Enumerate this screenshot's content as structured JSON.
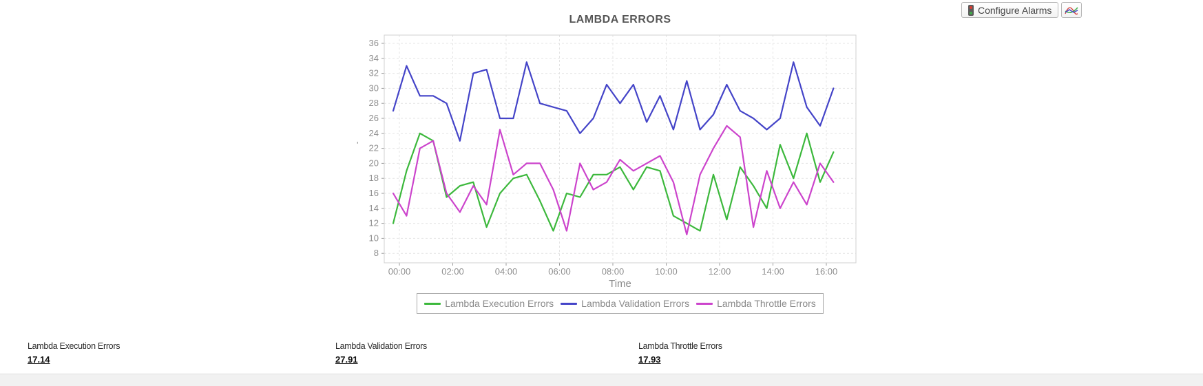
{
  "header": {
    "configure_alarms_label": "Configure Alarms"
  },
  "chart_data": {
    "type": "line",
    "title": "LAMBDA ERRORS",
    "xlabel": "Time",
    "ylabel_mark": "'",
    "grid": true,
    "legend_position": "bottom",
    "ylim": [
      8,
      36
    ],
    "y_ticks": [
      8,
      10,
      12,
      14,
      16,
      18,
      20,
      22,
      24,
      26,
      28,
      30,
      32,
      34,
      36
    ],
    "x_ticks": [
      "00:00",
      "02:00",
      "04:00",
      "06:00",
      "08:00",
      "10:00",
      "12:00",
      "14:00",
      "16:00"
    ],
    "x": [
      "00:00",
      "00:30",
      "01:00",
      "01:30",
      "02:00",
      "02:30",
      "03:00",
      "03:30",
      "04:00",
      "04:30",
      "05:00",
      "05:30",
      "06:00",
      "06:30",
      "07:00",
      "07:30",
      "08:00",
      "08:30",
      "09:00",
      "09:30",
      "10:00",
      "10:30",
      "11:00",
      "11:30",
      "12:00",
      "12:30",
      "13:00",
      "13:30",
      "14:00",
      "14:30",
      "15:00",
      "15:30",
      "16:00",
      "16:30"
    ],
    "series": [
      {
        "name": "Lambda Execution Errors",
        "color": "#3cb83c",
        "values": [
          12,
          19,
          24,
          23,
          15.5,
          17,
          17.5,
          11.5,
          16,
          18,
          18.5,
          15,
          11,
          16,
          15.5,
          18.5,
          18.5,
          19.5,
          16.5,
          19.5,
          19,
          13,
          12,
          11,
          18.5,
          12.5,
          19.5,
          17,
          14,
          22.5,
          18,
          24,
          17.5,
          21.5
        ]
      },
      {
        "name": "Lambda Validation Errors",
        "color": "#4444c8",
        "values": [
          27,
          33,
          29,
          29,
          28,
          23,
          32,
          32.5,
          26,
          26,
          33.5,
          28,
          27.5,
          27,
          24,
          26,
          30.5,
          28,
          30.5,
          25.5,
          29,
          24.5,
          31,
          24.5,
          26.5,
          30.5,
          27,
          26,
          24.5,
          26,
          33.5,
          27.5,
          25,
          30
        ]
      },
      {
        "name": "Lambda Throttle Errors",
        "color": "#cc44cc",
        "values": [
          16,
          13,
          22,
          23,
          16,
          13.5,
          17,
          14.5,
          24.5,
          18.5,
          20,
          20,
          16.5,
          11,
          20,
          16.5,
          17.5,
          20.5,
          19,
          20,
          21,
          17.5,
          10.5,
          18.5,
          22,
          25,
          23.5,
          11.5,
          19,
          14,
          17.5,
          14.5,
          20,
          17.5
        ]
      }
    ]
  },
  "stats": [
    {
      "label": "Lambda Execution Errors",
      "value": "17.14"
    },
    {
      "label": "Lambda Validation Errors",
      "value": "27.91"
    },
    {
      "label": "Lambda Throttle Errors",
      "value": "17.93"
    }
  ]
}
